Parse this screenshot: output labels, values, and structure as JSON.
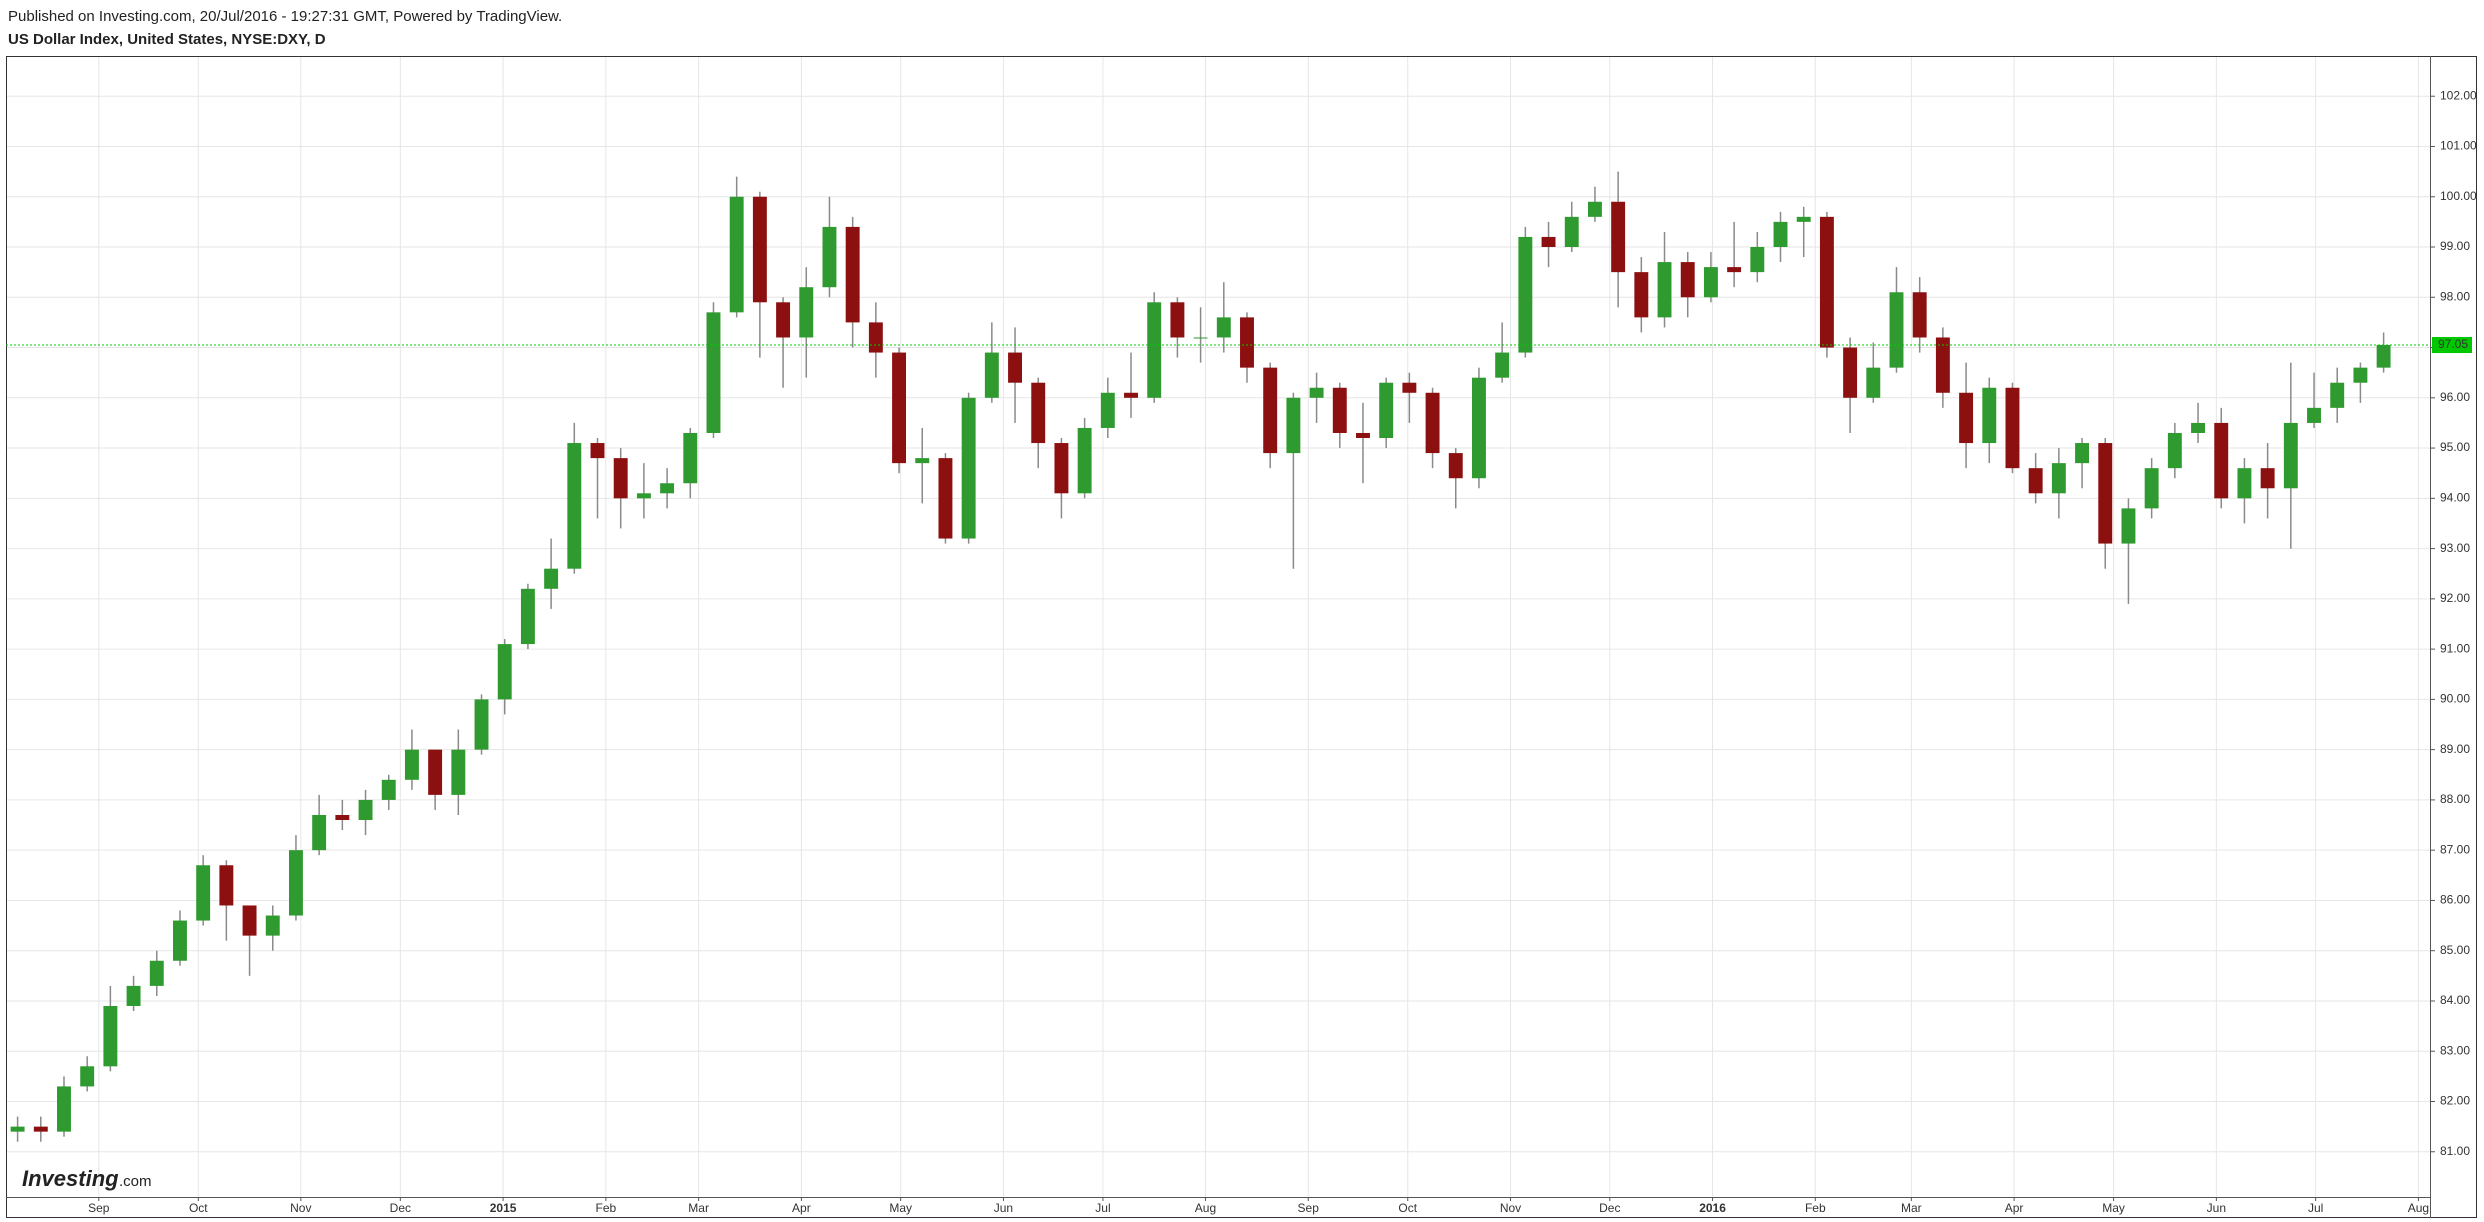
{
  "header": {
    "published": "Published on Investing.com, 20/Jul/2016 - 19:27:31 GMT, Powered by TradingView.",
    "symbol": "US Dollar Index, United States, NYSE:DXY, D"
  },
  "chart_data": {
    "type": "candlestick",
    "open": [
      81.4,
      81.5,
      81.4,
      82.3,
      82.7,
      83.9,
      84.3,
      84.8,
      85.6,
      86.7,
      85.9,
      85.3,
      85.7,
      87.0,
      87.7,
      87.6,
      88.0,
      88.4,
      89.0,
      88.1,
      89.0,
      90.0,
      91.1,
      92.2,
      92.6,
      95.1,
      94.8,
      94.0,
      94.1,
      94.3,
      95.3,
      97.7,
      100.0,
      97.9,
      97.2,
      98.2,
      99.4,
      97.5,
      96.9,
      94.7,
      94.8,
      93.2,
      96.0,
      96.9,
      96.3,
      95.1,
      94.1,
      95.4,
      96.1,
      96.0,
      97.9,
      97.2,
      97.2,
      97.6,
      96.6,
      94.9,
      96.0,
      96.2,
      95.3,
      95.2,
      96.3,
      96.1,
      94.9,
      94.4,
      96.4,
      96.9,
      99.2,
      99.0,
      99.6,
      99.9,
      98.5,
      97.6,
      98.7,
      98.0,
      98.6,
      98.5,
      99.0,
      99.5,
      99.6,
      97.0,
      96.0,
      96.6,
      98.1,
      97.2,
      96.1,
      95.1,
      96.2,
      94.6,
      94.1,
      94.7,
      95.1,
      93.1,
      93.8,
      94.6,
      95.3,
      95.5,
      94.0,
      94.6,
      94.2,
      95.5,
      95.8,
      96.3,
      96.6
    ],
    "high": [
      81.7,
      81.7,
      82.5,
      82.9,
      84.3,
      84.5,
      85.0,
      85.8,
      86.9,
      86.8,
      85.9,
      85.9,
      87.3,
      88.1,
      88.0,
      88.2,
      88.5,
      89.4,
      89.0,
      89.4,
      90.1,
      91.2,
      92.3,
      93.2,
      95.5,
      95.2,
      95.0,
      94.7,
      94.6,
      95.4,
      97.9,
      100.4,
      100.1,
      98.0,
      98.6,
      100.0,
      99.6,
      97.9,
      97.0,
      95.4,
      94.9,
      96.1,
      97.5,
      97.4,
      96.4,
      95.2,
      95.6,
      96.4,
      96.9,
      98.1,
      98.0,
      97.8,
      98.3,
      97.7,
      96.7,
      96.1,
      96.5,
      96.3,
      95.9,
      96.4,
      96.5,
      96.2,
      95.0,
      96.6,
      97.5,
      99.4,
      99.5,
      99.9,
      100.2,
      100.5,
      98.8,
      99.3,
      98.9,
      98.9,
      99.5,
      99.3,
      99.7,
      99.8,
      99.7,
      97.2,
      97.1,
      98.6,
      98.4,
      97.4,
      96.7,
      96.4,
      96.3,
      94.9,
      95.0,
      95.2,
      95.2,
      94.0,
      94.8,
      95.5,
      95.9,
      95.8,
      94.8,
      95.1,
      96.7,
      96.5,
      96.6,
      96.7,
      97.3
    ],
    "low": [
      81.2,
      81.2,
      81.3,
      82.2,
      82.6,
      83.8,
      84.1,
      84.7,
      85.5,
      85.2,
      84.5,
      85.0,
      85.6,
      86.9,
      87.4,
      87.3,
      87.8,
      88.2,
      87.8,
      87.7,
      88.9,
      89.7,
      91.0,
      91.8,
      92.5,
      93.6,
      93.4,
      93.6,
      93.8,
      94.0,
      95.2,
      97.6,
      96.8,
      96.2,
      96.4,
      98.0,
      97.0,
      96.4,
      94.5,
      93.9,
      93.1,
      93.1,
      95.9,
      95.5,
      94.6,
      93.6,
      94.0,
      95.2,
      95.6,
      95.9,
      96.8,
      96.7,
      96.9,
      96.3,
      94.6,
      92.6,
      95.5,
      95.0,
      94.3,
      95.0,
      95.5,
      94.6,
      93.8,
      94.2,
      96.3,
      96.8,
      98.6,
      98.9,
      99.5,
      97.8,
      97.3,
      97.4,
      97.6,
      97.9,
      98.2,
      98.3,
      98.7,
      98.8,
      96.8,
      95.3,
      95.9,
      96.5,
      96.9,
      95.8,
      94.6,
      94.7,
      94.5,
      93.9,
      93.6,
      94.2,
      92.6,
      91.9,
      93.6,
      94.4,
      95.1,
      93.8,
      93.5,
      93.6,
      93.0,
      95.4,
      95.5,
      95.9,
      96.5
    ],
    "close": [
      81.5,
      81.4,
      82.3,
      82.7,
      83.9,
      84.3,
      84.8,
      85.6,
      86.7,
      85.9,
      85.3,
      85.7,
      87.0,
      87.7,
      87.6,
      88.0,
      88.4,
      89.0,
      88.1,
      89.0,
      90.0,
      91.1,
      92.2,
      92.6,
      95.1,
      94.8,
      94.0,
      94.1,
      94.3,
      95.3,
      97.7,
      100.0,
      97.9,
      97.2,
      98.2,
      99.4,
      97.5,
      96.9,
      94.7,
      94.8,
      93.2,
      96.0,
      96.9,
      96.3,
      95.1,
      94.1,
      95.4,
      96.1,
      96.0,
      97.9,
      97.2,
      97.2,
      97.6,
      96.6,
      94.9,
      96.0,
      96.2,
      95.3,
      95.2,
      96.3,
      96.1,
      94.9,
      94.4,
      96.4,
      96.9,
      99.2,
      99.0,
      99.6,
      99.9,
      98.5,
      97.6,
      98.7,
      98.0,
      98.6,
      98.5,
      99.0,
      99.5,
      99.6,
      97.0,
      96.0,
      96.6,
      98.1,
      97.2,
      96.1,
      95.1,
      96.2,
      94.6,
      94.1,
      94.7,
      95.1,
      93.1,
      93.8,
      94.6,
      95.3,
      95.5,
      94.0,
      94.6,
      94.2,
      95.5,
      95.8,
      96.3,
      96.6,
      97.05
    ],
    "up_color": "#2f9a2f",
    "down_color": "#8c1010",
    "wick_color": "#8a8a8a",
    "xlim": [
      0,
      104.5
    ],
    "xticks": [
      {
        "value": 4,
        "label": "Sep"
      },
      {
        "value": 8.29,
        "label": "Oct"
      },
      {
        "value": 12.71,
        "label": "Nov"
      },
      {
        "value": 17,
        "label": "Dec"
      },
      {
        "value": 21.43,
        "label": "2015"
      },
      {
        "value": 25.86,
        "label": "Feb"
      },
      {
        "value": 29.86,
        "label": "Mar"
      },
      {
        "value": 34.29,
        "label": "Apr"
      },
      {
        "value": 38.57,
        "label": "May"
      },
      {
        "value": 43,
        "label": "Jun"
      },
      {
        "value": 47.29,
        "label": "Jul"
      },
      {
        "value": 51.71,
        "label": "Aug"
      },
      {
        "value": 56.14,
        "label": "Sep"
      },
      {
        "value": 60.43,
        "label": "Oct"
      },
      {
        "value": 64.86,
        "label": "Nov"
      },
      {
        "value": 69.14,
        "label": "Dec"
      },
      {
        "value": 73.57,
        "label": "2016"
      },
      {
        "value": 78,
        "label": "Feb"
      },
      {
        "value": 82.14,
        "label": "Mar"
      },
      {
        "value": 86.57,
        "label": "Apr"
      },
      {
        "value": 90.86,
        "label": "May"
      },
      {
        "value": 95.29,
        "label": "Jun"
      },
      {
        "value": 99.57,
        "label": "Jul"
      },
      {
        "value": 104,
        "label": "Aug"
      }
    ],
    "ylim": [
      80.1,
      102.8
    ],
    "yticks": [
      {
        "value": 81,
        "label": "81.00"
      },
      {
        "value": 82,
        "label": "82.00"
      },
      {
        "value": 83,
        "label": "83.00"
      },
      {
        "value": 84,
        "label": "84.00"
      },
      {
        "value": 85,
        "label": "85.00"
      },
      {
        "value": 86,
        "label": "86.00"
      },
      {
        "value": 87,
        "label": "87.00"
      },
      {
        "value": 88,
        "label": "88.00"
      },
      {
        "value": 89,
        "label": "89.00"
      },
      {
        "value": 90,
        "label": "90.00"
      },
      {
        "value": 91,
        "label": "91.00"
      },
      {
        "value": 92,
        "label": "92.00"
      },
      {
        "value": 93,
        "label": "93.00"
      },
      {
        "value": 94,
        "label": "94.00"
      },
      {
        "value": 95,
        "label": "95.00"
      },
      {
        "value": 96,
        "label": "96.00"
      },
      {
        "value": 97,
        "label": "97.00"
      },
      {
        "value": 98,
        "label": "98.00"
      },
      {
        "value": 99,
        "label": "99.00"
      },
      {
        "value": 100,
        "label": "100.00"
      },
      {
        "value": 101,
        "label": "101.00"
      },
      {
        "value": 102,
        "label": "102.00"
      }
    ],
    "grid": true,
    "last_price": 97.05,
    "last_price_color": "#00c800"
  },
  "logo": {
    "brand": "Investing",
    "suffix": ".com"
  }
}
